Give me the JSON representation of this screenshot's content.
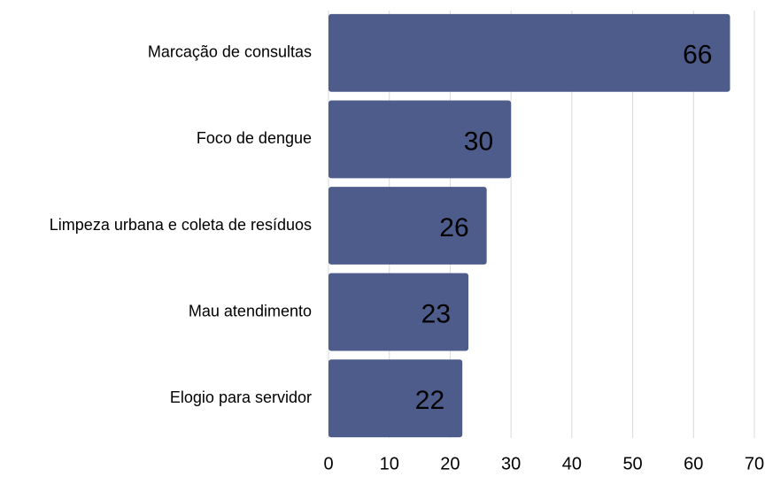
{
  "chart_data": {
    "type": "bar",
    "orientation": "horizontal",
    "categories": [
      "Marcação de consultas",
      "Foco de dengue",
      "Limpeza urbana e coleta de resíduos",
      "Mau atendimento",
      "Elogio para servidor"
    ],
    "values": [
      66,
      30,
      26,
      23,
      22
    ],
    "color": "#4e5c8c",
    "xlim": [
      0,
      70
    ],
    "xticks": [
      0,
      10,
      20,
      30,
      40,
      50,
      60,
      70
    ],
    "grid": true
  }
}
